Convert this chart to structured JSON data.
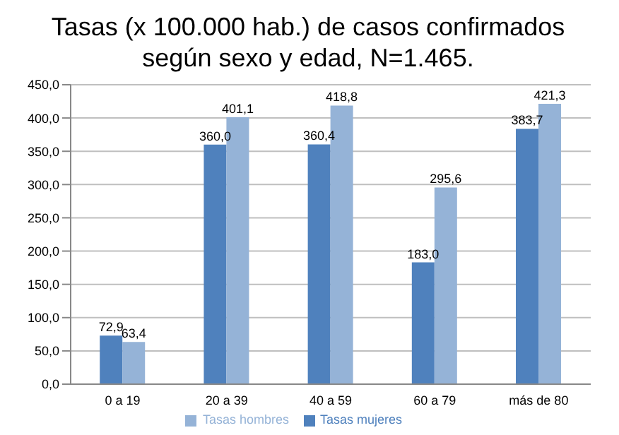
{
  "chart_data": {
    "type": "bar",
    "title": "Tasas (x 100.000 hab.) de casos confirmados según sexo y edad, N=1.465.",
    "categories": [
      "0 a 19",
      "20 a 39",
      "40 a 59",
      "60 a 79",
      "más de 80"
    ],
    "series": [
      {
        "name": "Tasas mujeres",
        "color": "#4f81bd",
        "values": [
          72.9,
          360.0,
          360.4,
          183.0,
          383.7
        ],
        "value_labels": [
          "72,9",
          "360,0",
          "360,4",
          "183,0",
          "383,7"
        ]
      },
      {
        "name": "Tasas hombres",
        "color": "#95b3d7",
        "values": [
          63.4,
          401.1,
          418.8,
          295.6,
          421.3
        ],
        "value_labels": [
          "63,4",
          "401,1",
          "418,8",
          "295,6",
          "421,3"
        ]
      }
    ],
    "ylim": [
      0,
      450
    ],
    "yticks": [
      {
        "value": 0,
        "label": "0,0"
      },
      {
        "value": 50,
        "label": "50,0"
      },
      {
        "value": 100,
        "label": "100,0"
      },
      {
        "value": 150,
        "label": "150,0"
      },
      {
        "value": 200,
        "label": "200,0"
      },
      {
        "value": 250,
        "label": "250,0"
      },
      {
        "value": 300,
        "label": "300,0"
      },
      {
        "value": 350,
        "label": "350,0"
      },
      {
        "value": 400,
        "label": "400,0"
      },
      {
        "value": 450,
        "label": "450,0"
      }
    ],
    "grid": "y",
    "legend": "bottom"
  }
}
